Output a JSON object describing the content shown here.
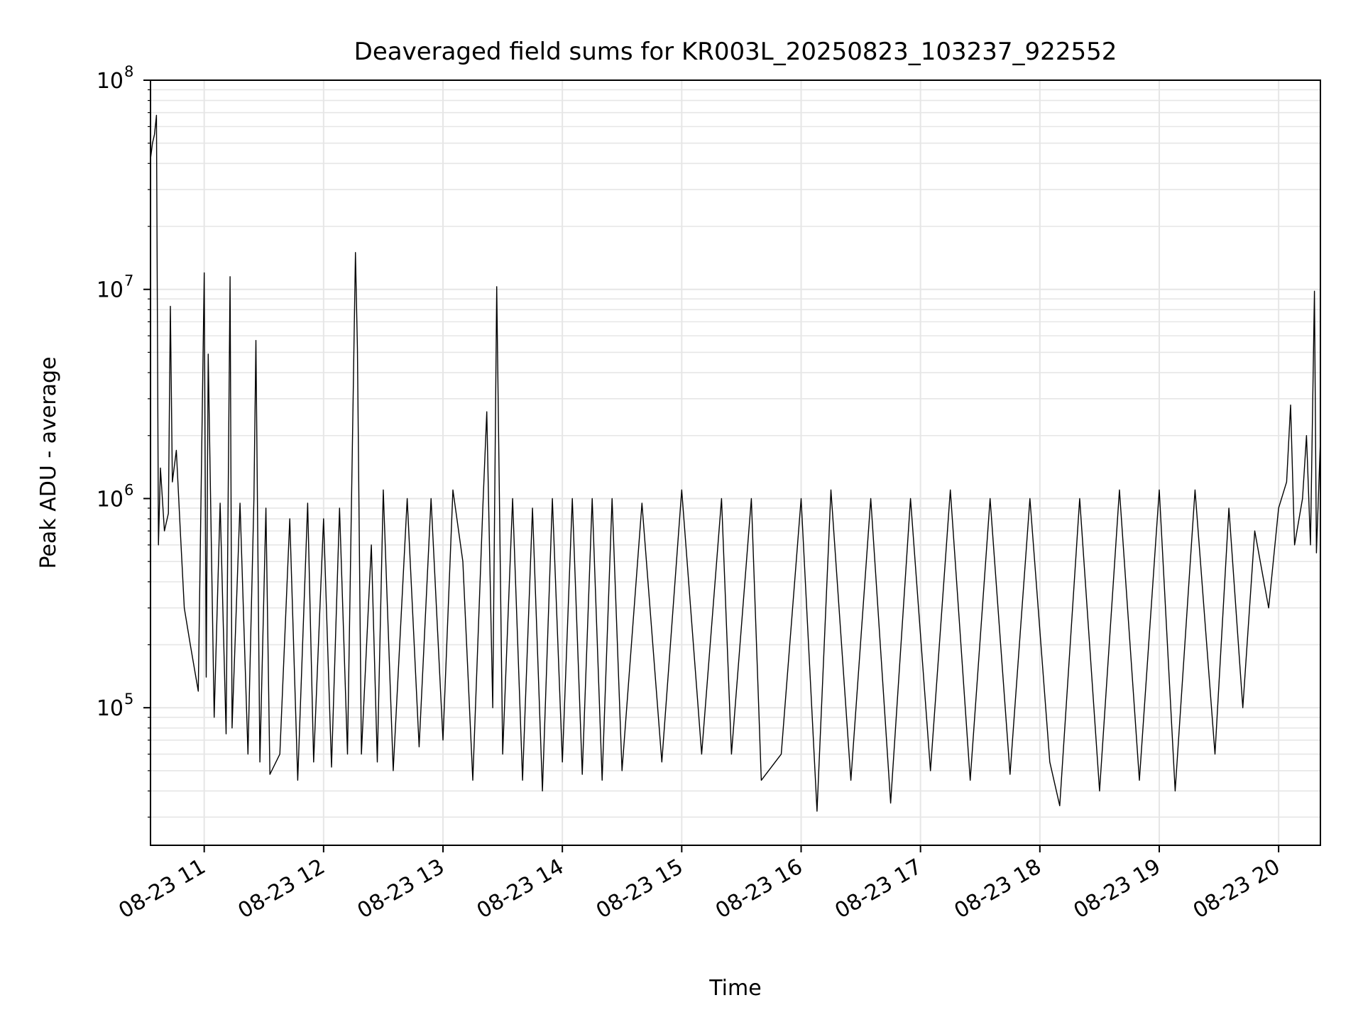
{
  "chart_data": {
    "type": "line",
    "title": "Deaveraged field sums for KR003L_20250823_103237_922552",
    "xlabel": "Time",
    "ylabel": "Peak ADU - average",
    "yscale": "log",
    "ylim": [
      22000,
      100000000
    ],
    "xlim": [
      "2025-08-23 10:33",
      "2025-08-23 20:21"
    ],
    "grid": true,
    "line_color": "#000000",
    "grid_color": "#e6e6e6",
    "x_ticks": [
      {
        "t": "2025-08-23 11:00",
        "label": "08-23 11"
      },
      {
        "t": "2025-08-23 12:00",
        "label": "08-23 12"
      },
      {
        "t": "2025-08-23 13:00",
        "label": "08-23 13"
      },
      {
        "t": "2025-08-23 14:00",
        "label": "08-23 14"
      },
      {
        "t": "2025-08-23 15:00",
        "label": "08-23 15"
      },
      {
        "t": "2025-08-23 16:00",
        "label": "08-23 16"
      },
      {
        "t": "2025-08-23 17:00",
        "label": "08-23 17"
      },
      {
        "t": "2025-08-23 18:00",
        "label": "08-23 18"
      },
      {
        "t": "2025-08-23 19:00",
        "label": "08-23 19"
      },
      {
        "t": "2025-08-23 20:00",
        "label": "08-23 20"
      }
    ],
    "y_ticks": [
      {
        "value": 100000,
        "base": "10",
        "exp": "5"
      },
      {
        "value": 1000000,
        "base": "10",
        "exp": "6"
      },
      {
        "value": 10000000,
        "base": "10",
        "exp": "7"
      },
      {
        "value": 100000000,
        "base": "10",
        "exp": "8"
      }
    ],
    "series": [
      {
        "points": [
          [
            "2025-08-23 10:33",
            42000000
          ],
          [
            "2025-08-23 10:34",
            50000000
          ],
          [
            "2025-08-23 10:35",
            55000000
          ],
          [
            "2025-08-23 10:36",
            68000000
          ],
          [
            "2025-08-23 10:37",
            600000
          ],
          [
            "2025-08-23 10:38",
            1400000
          ],
          [
            "2025-08-23 10:40",
            700000
          ],
          [
            "2025-08-23 10:42",
            850000
          ],
          [
            "2025-08-23 10:43",
            8300000
          ],
          [
            "2025-08-23 10:44",
            1200000
          ],
          [
            "2025-08-23 10:46",
            1700000
          ],
          [
            "2025-08-23 10:48",
            700000
          ],
          [
            "2025-08-23 10:50",
            300000
          ],
          [
            "2025-08-23 10:53",
            200000
          ],
          [
            "2025-08-23 10:57",
            120000
          ],
          [
            "2025-08-23 11:00",
            12000000
          ],
          [
            "2025-08-23 11:01",
            140000
          ],
          [
            "2025-08-23 11:02",
            4900000
          ],
          [
            "2025-08-23 11:05",
            90000
          ],
          [
            "2025-08-23 11:08",
            950000
          ],
          [
            "2025-08-23 11:11",
            75000
          ],
          [
            "2025-08-23 11:13",
            11500000
          ],
          [
            "2025-08-23 11:14",
            80000
          ],
          [
            "2025-08-23 11:18",
            950000
          ],
          [
            "2025-08-23 11:22",
            60000
          ],
          [
            "2025-08-23 11:25",
            1000000
          ],
          [
            "2025-08-23 11:26",
            5700000
          ],
          [
            "2025-08-23 11:28",
            55000
          ],
          [
            "2025-08-23 11:31",
            900000
          ],
          [
            "2025-08-23 11:33",
            48000
          ],
          [
            "2025-08-23 11:38",
            60000
          ],
          [
            "2025-08-23 11:43",
            800000
          ],
          [
            "2025-08-23 11:47",
            45000
          ],
          [
            "2025-08-23 11:52",
            950000
          ],
          [
            "2025-08-23 11:55",
            55000
          ],
          [
            "2025-08-23 12:00",
            800000
          ],
          [
            "2025-08-23 12:04",
            52000
          ],
          [
            "2025-08-23 12:08",
            900000
          ],
          [
            "2025-08-23 12:12",
            60000
          ],
          [
            "2025-08-23 12:16",
            15000000
          ],
          [
            "2025-08-23 12:17",
            5200000
          ],
          [
            "2025-08-23 12:19",
            60000
          ],
          [
            "2025-08-23 12:24",
            600000
          ],
          [
            "2025-08-23 12:27",
            55000
          ],
          [
            "2025-08-23 12:30",
            1100000
          ],
          [
            "2025-08-23 12:35",
            50000
          ],
          [
            "2025-08-23 12:42",
            1000000
          ],
          [
            "2025-08-23 12:48",
            65000
          ],
          [
            "2025-08-23 12:54",
            1000000
          ],
          [
            "2025-08-23 13:00",
            70000
          ],
          [
            "2025-08-23 13:05",
            1100000
          ],
          [
            "2025-08-23 13:10",
            500000
          ],
          [
            "2025-08-23 13:15",
            45000
          ],
          [
            "2025-08-23 13:20",
            900000
          ],
          [
            "2025-08-23 13:22",
            2600000
          ],
          [
            "2025-08-23 13:25",
            100000
          ],
          [
            "2025-08-23 13:27",
            10300000
          ],
          [
            "2025-08-23 13:30",
            60000
          ],
          [
            "2025-08-23 13:35",
            1000000
          ],
          [
            "2025-08-23 13:40",
            45000
          ],
          [
            "2025-08-23 13:45",
            900000
          ],
          [
            "2025-08-23 13:50",
            40000
          ],
          [
            "2025-08-23 13:55",
            1000000
          ],
          [
            "2025-08-23 14:00",
            55000
          ],
          [
            "2025-08-23 14:05",
            1000000
          ],
          [
            "2025-08-23 14:10",
            48000
          ],
          [
            "2025-08-23 14:15",
            1000000
          ],
          [
            "2025-08-23 14:20",
            45000
          ],
          [
            "2025-08-23 14:25",
            1000000
          ],
          [
            "2025-08-23 14:30",
            50000
          ],
          [
            "2025-08-23 14:40",
            950000
          ],
          [
            "2025-08-23 14:50",
            55000
          ],
          [
            "2025-08-23 15:00",
            1100000
          ],
          [
            "2025-08-23 15:10",
            60000
          ],
          [
            "2025-08-23 15:20",
            1000000
          ],
          [
            "2025-08-23 15:25",
            60000
          ],
          [
            "2025-08-23 15:35",
            1000000
          ],
          [
            "2025-08-23 15:40",
            45000
          ],
          [
            "2025-08-23 15:50",
            60000
          ],
          [
            "2025-08-23 16:00",
            1000000
          ],
          [
            "2025-08-23 16:08",
            32000
          ],
          [
            "2025-08-23 16:15",
            1100000
          ],
          [
            "2025-08-23 16:25",
            45000
          ],
          [
            "2025-08-23 16:35",
            1000000
          ],
          [
            "2025-08-23 16:45",
            35000
          ],
          [
            "2025-08-23 16:55",
            1000000
          ],
          [
            "2025-08-23 17:05",
            50000
          ],
          [
            "2025-08-23 17:15",
            1100000
          ],
          [
            "2025-08-23 17:25",
            45000
          ],
          [
            "2025-08-23 17:35",
            1000000
          ],
          [
            "2025-08-23 17:45",
            48000
          ],
          [
            "2025-08-23 17:55",
            1000000
          ],
          [
            "2025-08-23 18:05",
            55000
          ],
          [
            "2025-08-23 18:10",
            34000
          ],
          [
            "2025-08-23 18:20",
            1000000
          ],
          [
            "2025-08-23 18:30",
            40000
          ],
          [
            "2025-08-23 18:40",
            1100000
          ],
          [
            "2025-08-23 18:50",
            45000
          ],
          [
            "2025-08-23 19:00",
            1100000
          ],
          [
            "2025-08-23 19:08",
            40000
          ],
          [
            "2025-08-23 19:18",
            1100000
          ],
          [
            "2025-08-23 19:28",
            60000
          ],
          [
            "2025-08-23 19:35",
            900000
          ],
          [
            "2025-08-23 19:42",
            100000
          ],
          [
            "2025-08-23 19:48",
            700000
          ],
          [
            "2025-08-23 19:55",
            300000
          ],
          [
            "2025-08-23 20:00",
            900000
          ],
          [
            "2025-08-23 20:04",
            1200000
          ],
          [
            "2025-08-23 20:06",
            2800000
          ],
          [
            "2025-08-23 20:08",
            600000
          ],
          [
            "2025-08-23 20:12",
            1000000
          ],
          [
            "2025-08-23 20:14",
            2000000
          ],
          [
            "2025-08-23 20:16",
            600000
          ],
          [
            "2025-08-23 20:18",
            9800000
          ],
          [
            "2025-08-23 20:19",
            550000
          ],
          [
            "2025-08-23 20:21",
            1900000
          ]
        ]
      }
    ]
  }
}
